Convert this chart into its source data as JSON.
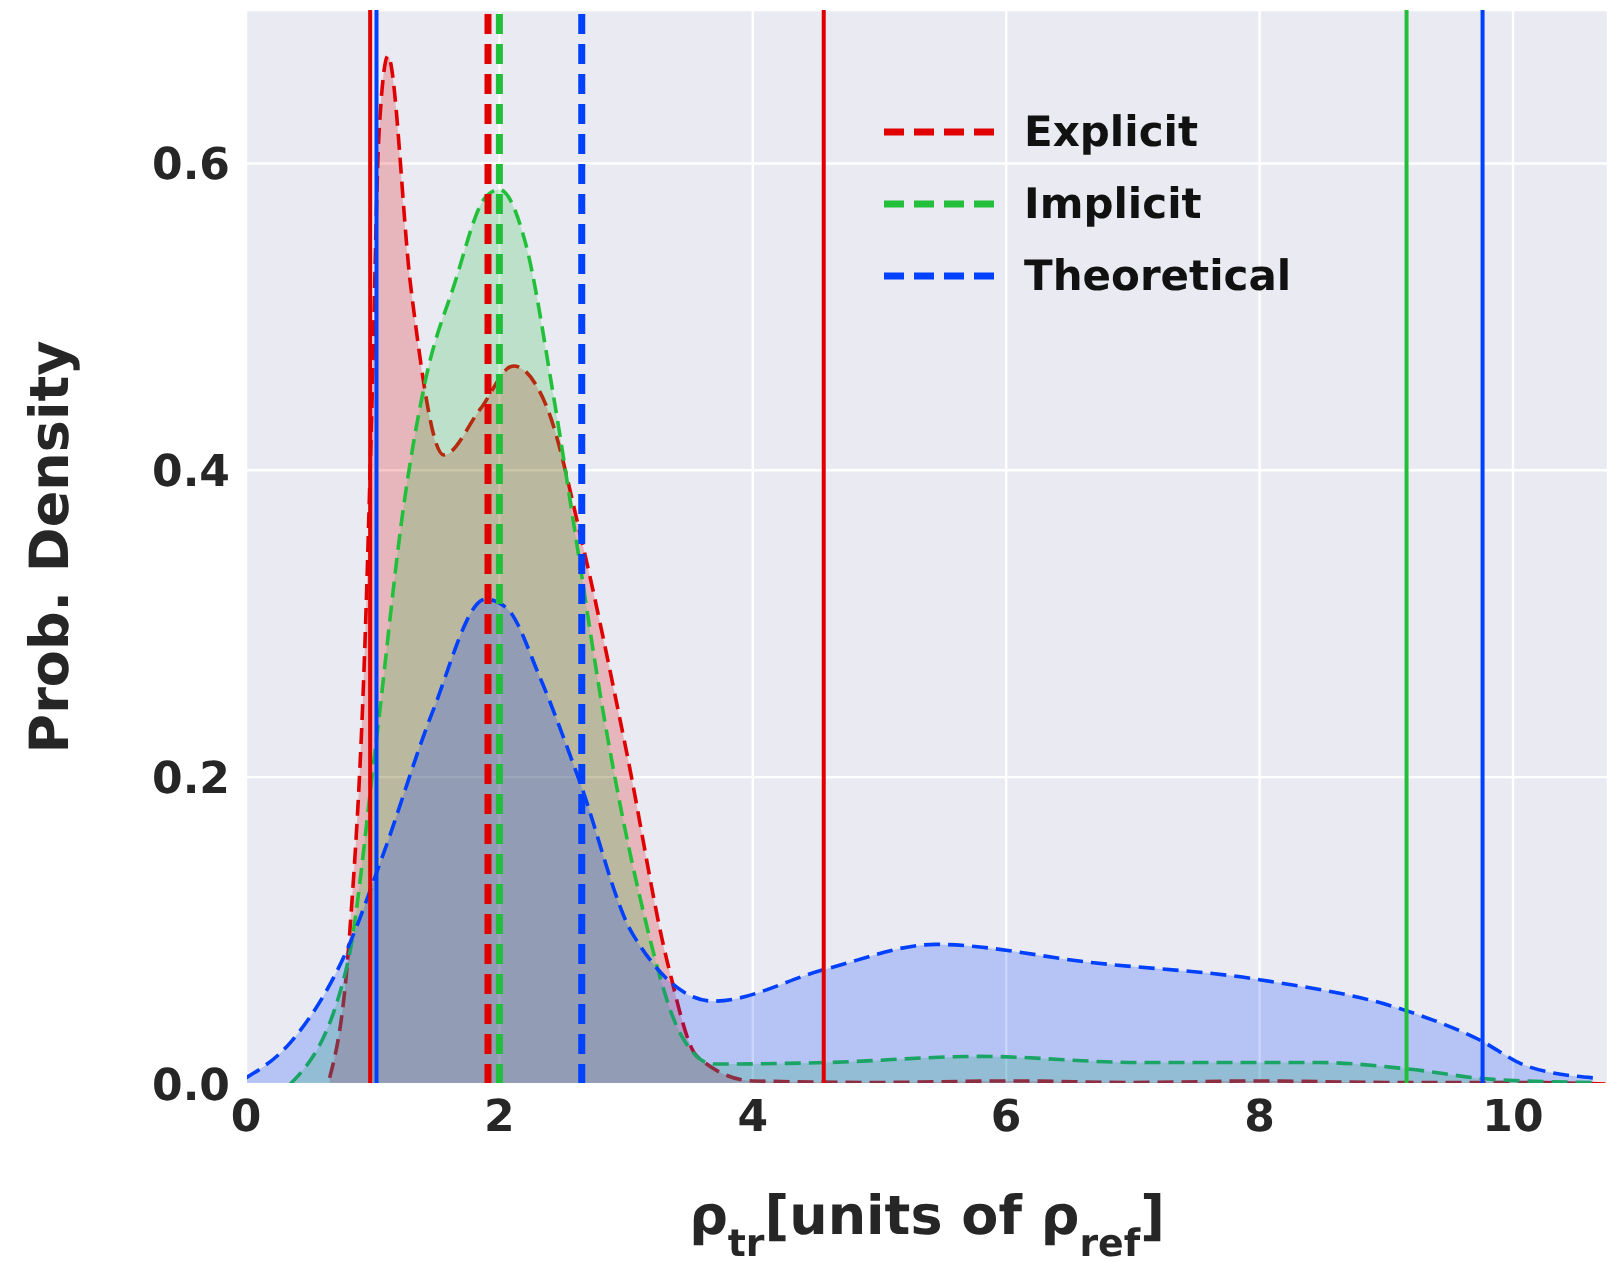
{
  "chart_data": {
    "type": "area",
    "xlabel": "ρ$_{tr}$[units of ρ$_{ref}$]",
    "ylabel": "Prob. Density",
    "xlim": [
      0,
      10.75
    ],
    "xticks": [
      0,
      2,
      4,
      6,
      8,
      10
    ],
    "ylim": [
      0,
      0.7
    ],
    "yticks": [
      {
        "value": 0,
        "label": "0.0"
      },
      {
        "value": 0.2,
        "label": "0.2"
      },
      {
        "value": 0.4,
        "label": "0.4"
      },
      {
        "value": 0.6,
        "label": "0.6"
      }
    ],
    "grid": true,
    "legend": "top right",
    "line_style": "dashed",
    "series": [
      {
        "name": "Explicit",
        "color": "#e00000",
        "x": [
          0.66,
          0.82,
          0.94,
          0.99,
          1.05,
          1.12,
          1.3,
          1.56,
          1.85,
          2.11,
          2.38,
          2.65,
          3.0,
          3.33,
          3.56,
          4.0,
          5.0,
          6.0,
          7.0,
          8.0,
          9.0,
          10.0,
          10.75
        ],
        "values": [
          0.004,
          0.1,
          0.29,
          0.43,
          0.62,
          0.67,
          0.52,
          0.41,
          0.44,
          0.468,
          0.44,
          0.354,
          0.218,
          0.078,
          0.018,
          0.002,
          0.001,
          0.002,
          0.001,
          0.002,
          0.001,
          0.001,
          0
        ]
      },
      {
        "name": "Implicit",
        "color": "#22c03a",
        "x": [
          0.35,
          0.8,
          1.02,
          1.25,
          1.42,
          1.64,
          1.89,
          2.0,
          2.2,
          2.43,
          2.6,
          2.82,
          3.1,
          3.44,
          3.69,
          4.58,
          5.79,
          7.05,
          8.47,
          9.15,
          9.84,
          10.63
        ],
        "values": [
          0,
          0.078,
          0.218,
          0.38,
          0.46,
          0.52,
          0.578,
          0.583,
          0.55,
          0.447,
          0.358,
          0.242,
          0.125,
          0.031,
          0.013,
          0.014,
          0.018,
          0.014,
          0.014,
          0.01,
          0.003,
          0.001
        ]
      },
      {
        "name": "Theoretical",
        "color": "#0040ff",
        "x": [
          0,
          0.35,
          0.8,
          1.08,
          1.47,
          1.89,
          2.06,
          2.32,
          2.63,
          3.05,
          3.69,
          4.58,
          5.44,
          6.69,
          8.0,
          9.15,
          9.73,
          10.1,
          10.63
        ],
        "values": [
          0.004,
          0.027,
          0.088,
          0.149,
          0.242,
          0.316,
          0.31,
          0.265,
          0.198,
          0.098,
          0.054,
          0.075,
          0.091,
          0.079,
          0.068,
          0.048,
          0.029,
          0.012,
          0.004
        ]
      }
    ],
    "ref_lines": [
      {
        "axis": "x",
        "value": 1.91,
        "color": "#e00000",
        "line_style": "dashed"
      },
      {
        "axis": "x",
        "value": 2.0,
        "color": "#22c03a",
        "line_style": "dashed"
      },
      {
        "axis": "x",
        "value": 2.65,
        "color": "#0040ff",
        "line_style": "dashed"
      },
      {
        "axis": "x",
        "value": 0.98,
        "color": "#e00000",
        "line_style": "solid"
      },
      {
        "axis": "x",
        "value": 1.03,
        "color": "#0040ff",
        "line_style": "solid"
      },
      {
        "axis": "x",
        "value": 4.56,
        "color": "#e00000",
        "line_style": "solid"
      },
      {
        "axis": "x",
        "value": 9.16,
        "color": "#22c03a",
        "line_style": "solid"
      },
      {
        "axis": "x",
        "value": 9.76,
        "color": "#0040ff",
        "line_style": "solid"
      }
    ]
  }
}
